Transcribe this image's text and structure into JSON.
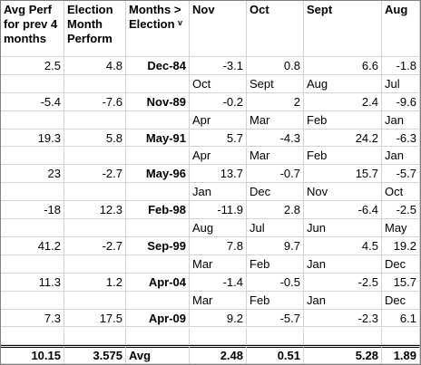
{
  "table": {
    "header": [
      "Avg Perf for prev 4 months",
      "Election Month Perform",
      "Months > Election ᵛ",
      "Nov",
      "Oct",
      "Sept",
      "Aug"
    ],
    "rows": [
      {
        "cells": [
          2.5,
          4.8,
          "Dec-84",
          -3.1,
          0.8,
          6.6,
          -1.8
        ],
        "months": [
          "Oct",
          "Sept",
          "Aug",
          "Jul"
        ]
      },
      {
        "cells": [
          -5.4,
          -7.6,
          "Nov-89",
          -0.2,
          2,
          2.4,
          -9.6
        ],
        "months": [
          "Apr",
          "Mar",
          "Feb",
          "Jan"
        ]
      },
      {
        "cells": [
          19.3,
          5.8,
          "May-91",
          5.7,
          -4.3,
          24.2,
          -6.3
        ],
        "months": [
          "Apr",
          "Mar",
          "Feb",
          "Jan"
        ]
      },
      {
        "cells": [
          23,
          -2.7,
          "May-96",
          13.7,
          -0.7,
          15.7,
          -5.7
        ],
        "months": [
          "Jan",
          "Dec",
          "Nov",
          "Oct"
        ]
      },
      {
        "cells": [
          -18,
          12.3,
          "Feb-98",
          -11.9,
          2.8,
          -6.4,
          -2.5
        ],
        "months": [
          "Aug",
          "Jul",
          "Jun",
          "May"
        ]
      },
      {
        "cells": [
          41.2,
          -2.7,
          "Sep-99",
          7.8,
          9.7,
          4.5,
          19.2
        ],
        "months": [
          "Mar",
          "Feb",
          "Jan",
          "Dec"
        ]
      },
      {
        "cells": [
          11.3,
          1.2,
          "Apr-04",
          -1.4,
          -0.5,
          -2.5,
          15.7
        ],
        "months": [
          "Mar",
          "Feb",
          "Jan",
          "Dec"
        ]
      },
      {
        "cells": [
          7.3,
          17.5,
          "Apr-09",
          9.2,
          -5.7,
          -2.3,
          6.1
        ]
      }
    ],
    "footer": [
      10.15,
      3.575,
      "Avg",
      2.48,
      0.51,
      5.28,
      1.89
    ]
  }
}
